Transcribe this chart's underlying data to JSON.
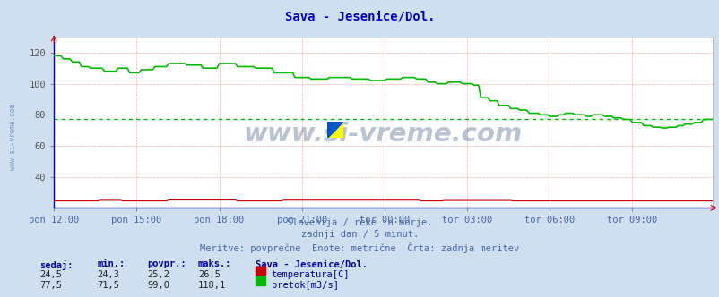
{
  "title": "Sava - Jesenice/Dol.",
  "title_color": "#0000cc",
  "bg_color": "#d0dff0",
  "plot_bg_color": "#ffffff",
  "grid_color": "#ffaaaa",
  "grid_vcolor": "#ddaaaa",
  "x_tick_labels": [
    "pon 12:00",
    "pon 15:00",
    "pon 18:00",
    "pon 21:00",
    "tor 00:00",
    "tor 03:00",
    "tor 06:00",
    "tor 09:00"
  ],
  "x_tick_positions": [
    0,
    36,
    72,
    108,
    144,
    180,
    216,
    252
  ],
  "ylim": [
    20,
    130
  ],
  "yticks": [
    40,
    60,
    80,
    100,
    120
  ],
  "ytick_labels": [
    "40",
    "60",
    "80",
    "100",
    "120"
  ],
  "temp_color": "#cc0000",
  "flow_color": "#00bb00",
  "flow_avg_color": "#00bb00",
  "avg_flow": 77.5,
  "watermark_text": "www.si-vreme.com",
  "watermark_color": "#1a3a6a",
  "watermark_alpha": 0.3,
  "footer_line1": "Slovenija / reke in morje.",
  "footer_line2": "zadnji dan / 5 minut.",
  "footer_line3": "Meritve: povprečne  Enote: metrične  Črta: zadnja meritev",
  "footer_color": "#4466aa",
  "legend_title": "Sava - Jesenice/Dol.",
  "legend_color": "#0000aa",
  "stat_headers": [
    "sedaj:",
    "min.:",
    "povpr.:",
    "maks.:"
  ],
  "stat_temp": [
    24.5,
    24.3,
    25.2,
    26.5
  ],
  "stat_flow": [
    77.5,
    71.5,
    99.0,
    118.1
  ],
  "side_watermark": "www.si-vreme.com",
  "side_watermark_color": "#5588bb",
  "n_points": 288
}
